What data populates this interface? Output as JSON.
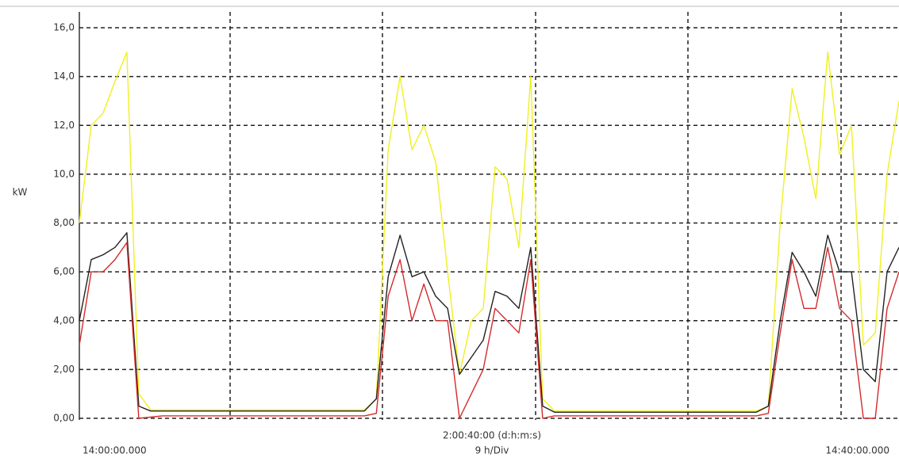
{
  "chart_data": {
    "type": "line",
    "y_label": "kW",
    "x_label": "2:00:40:00 (d:h:m:s)",
    "x_division": "9 h/Div",
    "categories": [
      "14:00:00.000",
      null,
      null,
      null,
      null,
      null,
      null,
      null,
      null,
      null,
      null,
      null,
      null,
      null,
      null,
      null,
      null,
      null,
      null,
      null,
      null,
      null,
      null,
      null,
      null,
      null,
      null,
      null,
      null,
      null,
      null,
      null,
      null,
      null,
      null,
      null,
      null,
      null,
      null,
      null,
      null,
      null,
      null,
      null,
      null,
      null,
      null,
      null,
      null,
      null,
      null,
      null,
      null,
      null,
      null,
      null,
      null,
      null,
      null,
      null,
      null,
      null,
      null,
      null,
      null,
      null,
      null,
      null,
      null,
      "14:40:00.000"
    ],
    "series": [
      {
        "color": "#f0f020",
        "values": [
          8,
          12,
          12.5,
          13.8,
          15,
          1,
          0.35,
          0.35,
          0.35,
          0.35,
          0.35,
          0.35,
          0.35,
          0.35,
          0.35,
          0.35,
          0.35,
          0.35,
          0.35,
          0.35,
          0.35,
          0.35,
          0.35,
          0.35,
          0.35,
          0.8,
          11,
          14,
          11,
          12,
          10.5,
          6,
          1.8,
          4,
          4.5,
          10.3,
          9.8,
          7,
          14,
          0.8,
          0.3,
          0.3,
          0.3,
          0.3,
          0.3,
          0.3,
          0.3,
          0.3,
          0.3,
          0.3,
          0.3,
          0.3,
          0.3,
          0.3,
          0.3,
          0.3,
          0.3,
          0.3,
          0.5,
          8,
          13.5,
          11.5,
          9,
          15,
          10.8,
          12,
          3,
          3.5,
          10,
          13
        ]
      },
      {
        "color": "#222222",
        "values": [
          4,
          6.5,
          6.7,
          7,
          7.6,
          0.5,
          0.3,
          0.3,
          0.3,
          0.3,
          0.3,
          0.3,
          0.3,
          0.3,
          0.3,
          0.3,
          0.3,
          0.3,
          0.3,
          0.3,
          0.3,
          0.3,
          0.3,
          0.3,
          0.3,
          0.8,
          5.8,
          7.5,
          5.8,
          6,
          5,
          4.5,
          1.8,
          2.5,
          3.2,
          5.2,
          5,
          4.5,
          7,
          0.5,
          0.25,
          0.25,
          0.25,
          0.25,
          0.25,
          0.25,
          0.25,
          0.25,
          0.25,
          0.25,
          0.25,
          0.25,
          0.25,
          0.25,
          0.25,
          0.25,
          0.25,
          0.25,
          0.5,
          4,
          6.8,
          6,
          5,
          7.5,
          6,
          6,
          2,
          1.5,
          6,
          7
        ]
      },
      {
        "color": "#d42a2a",
        "values": [
          3,
          6,
          6,
          6.5,
          7.2,
          0,
          0.05,
          0.1,
          0.1,
          0.1,
          0.1,
          0.1,
          0.1,
          0.1,
          0.1,
          0.1,
          0.1,
          0.1,
          0.1,
          0.1,
          0.1,
          0.1,
          0.1,
          0.1,
          0.1,
          0.2,
          5,
          6.5,
          4,
          5.5,
          4,
          4,
          0,
          1,
          2,
          4.5,
          4,
          3.5,
          6.5,
          0,
          0.1,
          0.1,
          0.1,
          0.1,
          0.1,
          0.1,
          0.1,
          0.1,
          0.1,
          0.1,
          0.1,
          0.1,
          0.1,
          0.1,
          0.1,
          0.1,
          0.1,
          0.1,
          0.2,
          3.5,
          6.5,
          4.5,
          4.5,
          7,
          4.5,
          4,
          0,
          0,
          4.5,
          6
        ]
      }
    ],
    "ylim": [
      0,
      16
    ],
    "yticks": [
      {
        "value": 0,
        "label": "0,00"
      },
      {
        "value": 2,
        "label": "2,00"
      },
      {
        "value": 4,
        "label": "4,00"
      },
      {
        "value": 6,
        "label": "6,00"
      },
      {
        "value": 8,
        "label": "8,00"
      },
      {
        "value": 10,
        "label": "10,0"
      },
      {
        "value": 12,
        "label": "12,0"
      },
      {
        "value": 14,
        "label": "14,0"
      },
      {
        "value": 16,
        "label": "16,0"
      }
    ],
    "grid": true
  }
}
